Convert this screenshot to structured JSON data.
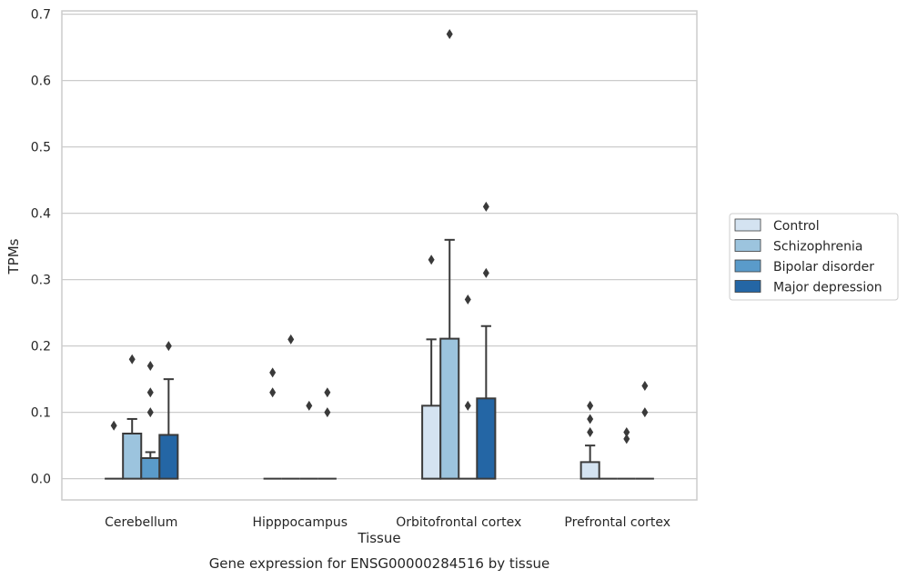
{
  "chart_data": {
    "type": "bar",
    "title": "",
    "caption": "Gene expression for ENSG00000284516 by tissue",
    "xlabel": "Tissue",
    "ylabel": "TPMs",
    "ylim": [
      -0.032,
      0.705
    ],
    "yticks": [
      "0.0",
      "0.1",
      "0.2",
      "0.3",
      "0.4",
      "0.5",
      "0.6",
      "0.7"
    ],
    "grid": true,
    "legend_position": "right",
    "categories": [
      "Cerebellum",
      "Hipppocampus",
      "Orbitofrontal cortex",
      "Prefrontal cortex"
    ],
    "series": [
      {
        "name": "Control",
        "color": "#d4e3f1",
        "values": [
          0.0,
          0.0,
          0.11,
          0.025
        ],
        "error_upper": [
          null,
          null,
          0.21,
          0.05
        ],
        "outliers": [
          [
            0.08
          ],
          [
            0.16,
            0.13
          ],
          [
            0.33
          ],
          [
            0.11,
            0.09,
            0.07
          ]
        ]
      },
      {
        "name": "Schizophrenia",
        "color": "#9cc4de",
        "values": [
          0.068,
          0.0,
          0.211,
          0.0
        ],
        "error_upper": [
          0.09,
          null,
          0.36,
          null
        ],
        "outliers": [
          [
            0.18
          ],
          [
            0.21
          ],
          [
            0.67
          ],
          []
        ]
      },
      {
        "name": "Bipolar disorder",
        "color": "#5a9bca",
        "values": [
          0.031,
          0.0,
          0.0,
          0.0
        ],
        "error_upper": [
          0.04,
          null,
          null,
          null
        ],
        "outliers": [
          [
            0.17,
            0.13,
            0.1
          ],
          [
            0.11
          ],
          [
            0.27,
            0.11
          ],
          [
            0.07,
            0.06
          ]
        ]
      },
      {
        "name": "Major depression",
        "color": "#2466a5",
        "values": [
          0.066,
          0.0,
          0.121,
          0.0
        ],
        "error_upper": [
          0.15,
          null,
          0.23,
          null
        ],
        "outliers": [
          [
            0.2
          ],
          [
            0.13,
            0.1
          ],
          [
            0.41,
            0.31
          ],
          [
            0.14,
            0.1
          ]
        ]
      }
    ]
  }
}
